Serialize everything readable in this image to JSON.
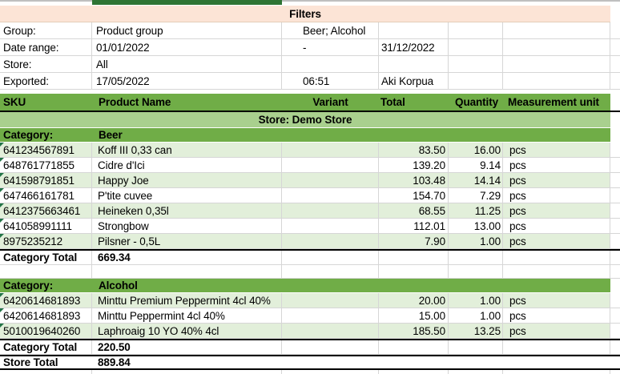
{
  "filters": {
    "title": "Filters",
    "rows": [
      {
        "label": "Group:",
        "value_b": "Product group",
        "value_c": "Beer; Alcohol",
        "value_d": ""
      },
      {
        "label": "Date range:",
        "value_b": "01/01/2022",
        "value_c": "-",
        "value_d": "31/12/2022"
      },
      {
        "label": "Store:",
        "value_b": "All",
        "value_c": "",
        "value_d": ""
      },
      {
        "label": "Exported:",
        "value_b": "17/05/2022",
        "value_c": "06:51",
        "value_d": "Aki Korpua"
      }
    ]
  },
  "table": {
    "columns": [
      "SKU",
      "Product Name",
      "Variant",
      "Total",
      "Quantity",
      "Measurement unit"
    ],
    "store_banner": "Store: Demo Store",
    "categories": [
      {
        "label": "Category:",
        "name": "Beer",
        "rows": [
          {
            "sku": "641234567891",
            "name": "Koff III 0,33 can",
            "variant": "",
            "total": "83.50",
            "qty": "16.00",
            "unit": "pcs"
          },
          {
            "sku": "648761771855",
            "name": "Cidre d'Ici",
            "variant": "",
            "total": "139.20",
            "qty": "9.14",
            "unit": "pcs"
          },
          {
            "sku": "641598791851",
            "name": "Happy Joe",
            "variant": "",
            "total": "103.48",
            "qty": "14.14",
            "unit": "pcs"
          },
          {
            "sku": "647466161781",
            "name": "P'tite cuvee",
            "variant": "",
            "total": "154.70",
            "qty": "7.29",
            "unit": "pcs"
          },
          {
            "sku": "6412375663461",
            "name": "Heineken 0,35l",
            "variant": "",
            "total": "68.55",
            "qty": "11.25",
            "unit": "pcs"
          },
          {
            "sku": "641058991111",
            "name": "Strongbow",
            "variant": "",
            "total": "112.01",
            "qty": "13.00",
            "unit": "pcs"
          },
          {
            "sku": "8975235212",
            "name": "Pilsner - 0,5L",
            "variant": "",
            "total": "7.90",
            "qty": "1.00",
            "unit": "pcs"
          }
        ],
        "total_label": "Category Total",
        "total_value": "669.34"
      },
      {
        "label": "Category:",
        "name": "Alcohol",
        "rows": [
          {
            "sku": "6420614681893",
            "name": "Minttu Premium Peppermint 4cl 40%",
            "variant": "",
            "total": "20.00",
            "qty": "1.00",
            "unit": "pcs"
          },
          {
            "sku": "6420614681893",
            "name": "Minttu Peppermint 4cl 40%",
            "variant": "",
            "total": "15.00",
            "qty": "1.00",
            "unit": "pcs"
          },
          {
            "sku": "5010019640260",
            "name": "Laphroaig 10 YO 40% 4cl",
            "variant": "",
            "total": "185.50",
            "qty": "13.25",
            "unit": "pcs"
          }
        ],
        "total_label": "Category Total",
        "total_value": "220.50"
      }
    ],
    "store_total": {
      "label": "Store Total",
      "value": "889.84"
    }
  },
  "colors": {
    "header_green": "#70AD47",
    "store_banner_green": "#A9D08E",
    "alt_row_green": "#E2EFDA",
    "filters_peach": "#FCE4D6",
    "top_bar_dark_green": "#2E7434",
    "gridline_gray": "#D6D6D6",
    "border_black": "#000000",
    "sku_indicator_green": "#217346"
  },
  "icons": {
    "sku_error_indicator": "corner-triangle"
  }
}
